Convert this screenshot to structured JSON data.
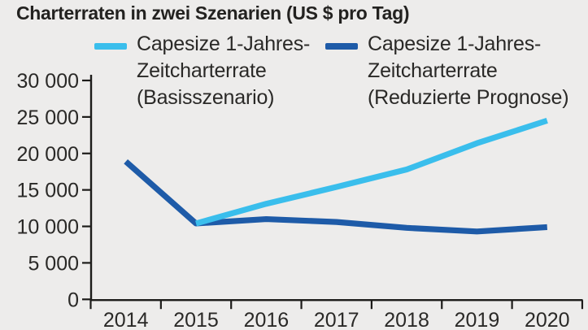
{
  "title": "Charterraten in zwei Szenarien (US $ pro Tag)",
  "colors": {
    "background": "#edeceb",
    "text": "#2a2927",
    "axis": "#1d1c1a",
    "basisszenario": "#3abeec",
    "reduzierte_prognose": "#1e5ba8"
  },
  "legend": {
    "items": [
      {
        "name": "basisszenario",
        "color": "#3abeec",
        "lines": [
          "Capesize 1-Jahres-",
          "Zeitcharterrate",
          "(Basisszenario)"
        ]
      },
      {
        "name": "reduzierte-prognose",
        "color": "#1e5ba8",
        "lines": [
          "Capesize 1-Jahres-",
          "Zeitcharterrate",
          "(Reduzierte Prognose)"
        ]
      }
    ]
  },
  "chart_data": {
    "type": "line",
    "title": "Charterraten in zwei Szenarien (US $ pro Tag)",
    "categories": [
      "2014",
      "2015",
      "2016",
      "2017",
      "2018",
      "2019",
      "2020"
    ],
    "series": [
      {
        "name": "Capesize 1-Jahres-Zeitcharterrate (Basisszenario)",
        "color": "#3abeec",
        "values": [
          null,
          10400,
          13100,
          15400,
          17800,
          21400,
          24500
        ]
      },
      {
        "name": "Capesize 1-Jahres-Zeitcharterrate (Reduzierte Prognose)",
        "color": "#1e5ba8",
        "values": [
          18900,
          10400,
          11000,
          10600,
          9800,
          9300,
          9900
        ]
      }
    ],
    "xlabel": "",
    "ylabel": "",
    "ylim": [
      0,
      30000
    ],
    "yticks": [
      0,
      5000,
      10000,
      15000,
      20000,
      25000,
      30000
    ],
    "ytick_labels": [
      "0",
      "5 000",
      "10 000",
      "15 000",
      "20 000",
      "25 000",
      "30 000"
    ],
    "grid": false,
    "legend_position": "top"
  }
}
